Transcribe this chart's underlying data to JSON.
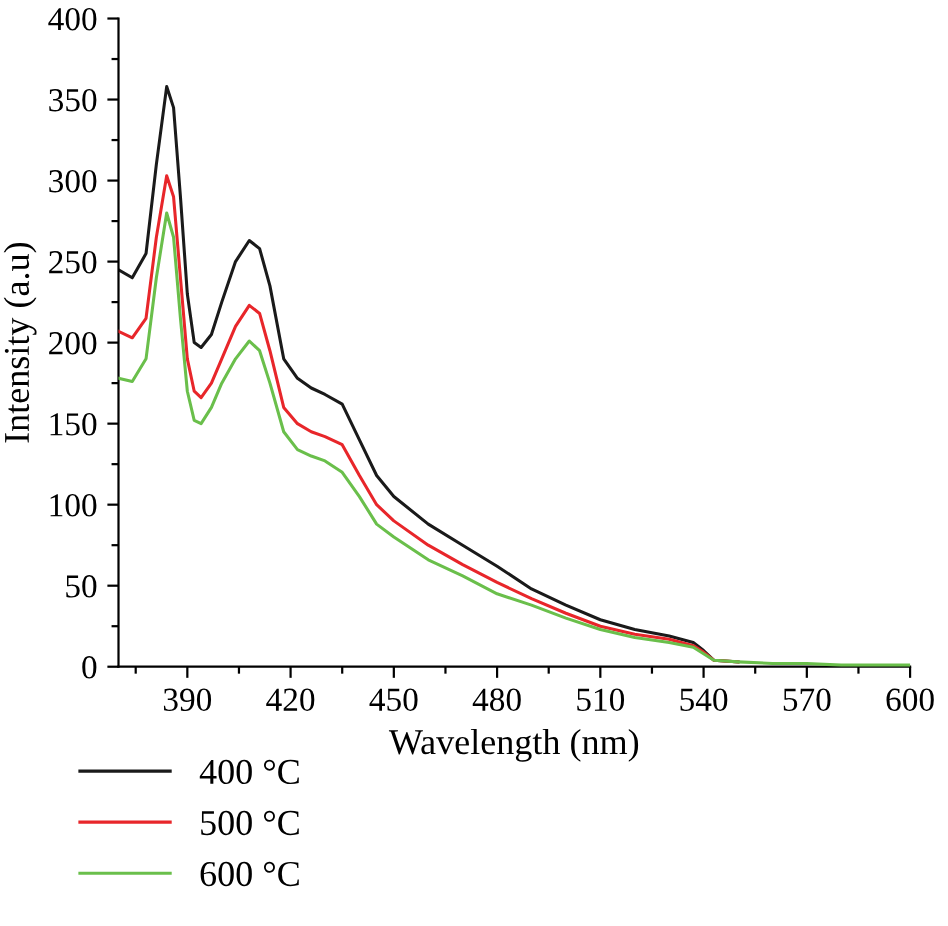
{
  "chart_data": {
    "type": "line",
    "xlabel": "Wavelength (nm)",
    "ylabel": "Intensity (a.u)",
    "x": [
      370,
      374,
      378,
      381,
      384,
      386,
      388,
      390,
      392,
      394,
      397,
      400,
      404,
      408,
      411,
      414,
      418,
      422,
      426,
      430,
      435,
      440,
      445,
      450,
      460,
      470,
      480,
      490,
      500,
      510,
      520,
      530,
      537,
      540,
      543,
      550,
      560,
      570,
      580,
      590,
      600
    ],
    "series": [
      {
        "name": "400 °C",
        "color": "#1a1a1a",
        "values": [
          245,
          240,
          255,
          310,
          358,
          345,
          290,
          230,
          200,
          197,
          205,
          225,
          250,
          263,
          258,
          235,
          190,
          178,
          172,
          168,
          162,
          140,
          118,
          105,
          88,
          75,
          62,
          48,
          38,
          29,
          23,
          19,
          15,
          10,
          4,
          3,
          null,
          null,
          null,
          null,
          null
        ]
      },
      {
        "name": "500 °C",
        "color": "#e8262a",
        "values": [
          207,
          203,
          215,
          265,
          303,
          290,
          240,
          190,
          170,
          166,
          175,
          190,
          210,
          223,
          218,
          195,
          160,
          150,
          145,
          142,
          137,
          118,
          100,
          90,
          75,
          63,
          52,
          42,
          33,
          25,
          20,
          17,
          13,
          9,
          4,
          3,
          null,
          null,
          null,
          null,
          null
        ]
      },
      {
        "name": "600 °C",
        "color": "#6abf4b",
        "values": [
          178,
          176,
          190,
          240,
          280,
          265,
          215,
          170,
          152,
          150,
          160,
          175,
          190,
          201,
          195,
          175,
          145,
          134,
          130,
          127,
          120,
          105,
          88,
          80,
          66,
          56,
          45,
          38,
          30,
          23,
          18,
          15,
          12,
          8,
          4,
          3,
          2,
          2,
          1,
          1,
          1
        ]
      }
    ],
    "xlim": [
      370,
      600
    ],
    "xticks": [
      {
        "value": 375,
        "label": null
      },
      390,
      {
        "value": 405,
        "label": null
      },
      420,
      {
        "value": 435,
        "label": null
      },
      450,
      {
        "value": 465,
        "label": null
      },
      480,
      {
        "value": 495,
        "label": null
      },
      510,
      {
        "value": 525,
        "label": null
      },
      540,
      {
        "value": 555,
        "label": null
      },
      570,
      {
        "value": 585,
        "label": null
      },
      600
    ],
    "ylim": [
      0,
      400
    ],
    "yticks": [
      0,
      {
        "value": 25,
        "label": null
      },
      50,
      {
        "value": 75,
        "label": null
      },
      100,
      {
        "value": 125,
        "label": null
      },
      150,
      {
        "value": 175,
        "label": null
      },
      200,
      {
        "value": 225,
        "label": null
      },
      250,
      {
        "value": 275,
        "label": null
      },
      300,
      {
        "value": 325,
        "label": null
      },
      350,
      {
        "value": 375,
        "label": null
      },
      400
    ],
    "grid": false,
    "legend": "bottom",
    "marker": "none",
    "line_style": "solid"
  }
}
